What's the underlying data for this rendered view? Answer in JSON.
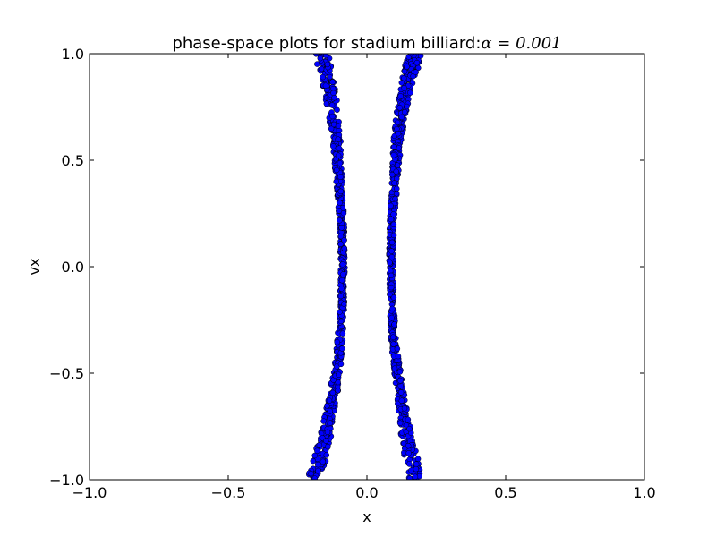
{
  "chart_data": {
    "type": "scatter",
    "title": "phase-space plots for stadium billiard:",
    "title_math": "α = 0.001",
    "xlabel": "x",
    "ylabel": "vx",
    "xlim": [
      -1.0,
      1.0
    ],
    "ylim": [
      -1.0,
      1.0
    ],
    "x_ticks": [
      "−1.0",
      "−0.5",
      "0.0",
      "0.5",
      "1.0"
    ],
    "y_ticks": [
      "−1.0",
      "−0.5",
      "0.0",
      "0.5",
      "1.0"
    ],
    "x_tick_values": [
      -1.0,
      -0.5,
      0.0,
      0.5,
      1.0
    ],
    "y_tick_values": [
      -1.0,
      -0.5,
      0.0,
      0.5,
      1.0
    ],
    "grid": false,
    "legend": "none",
    "series": [
      {
        "color": "#0000ff",
        "bands": [
          {
            "description": "left band",
            "points": [
              [
                -0.19,
                -1.0
              ],
              [
                -0.17,
                -0.9
              ],
              [
                -0.15,
                -0.8
              ],
              [
                -0.135,
                -0.7
              ],
              [
                -0.12,
                -0.6
              ],
              [
                -0.11,
                -0.5
              ],
              [
                -0.1,
                -0.4
              ],
              [
                -0.095,
                -0.3
              ],
              [
                -0.09,
                -0.2
              ],
              [
                -0.088,
                -0.1
              ],
              [
                -0.087,
                0.0
              ],
              [
                -0.088,
                0.1
              ],
              [
                -0.09,
                0.2
              ],
              [
                -0.095,
                0.3
              ],
              [
                -0.1,
                0.4
              ],
              [
                -0.105,
                0.5
              ],
              [
                -0.11,
                0.6
              ],
              [
                -0.12,
                0.7
              ],
              [
                -0.13,
                0.8
              ],
              [
                -0.145,
                0.9
              ],
              [
                -0.165,
                1.0
              ]
            ]
          },
          {
            "description": "right band",
            "points": [
              [
                0.18,
                -1.0
              ],
              [
                0.16,
                -0.9
              ],
              [
                0.145,
                -0.8
              ],
              [
                0.13,
                -0.7
              ],
              [
                0.12,
                -0.6
              ],
              [
                0.11,
                -0.5
              ],
              [
                0.1,
                -0.4
              ],
              [
                0.095,
                -0.3
              ],
              [
                0.09,
                -0.2
              ],
              [
                0.088,
                -0.1
              ],
              [
                0.087,
                0.0
              ],
              [
                0.088,
                0.1
              ],
              [
                0.09,
                0.2
              ],
              [
                0.095,
                0.3
              ],
              [
                0.1,
                0.4
              ],
              [
                0.105,
                0.5
              ],
              [
                0.11,
                0.6
              ],
              [
                0.12,
                0.7
              ],
              [
                0.135,
                0.8
              ],
              [
                0.15,
                0.9
              ],
              [
                0.18,
                1.0
              ]
            ]
          }
        ]
      }
    ]
  }
}
